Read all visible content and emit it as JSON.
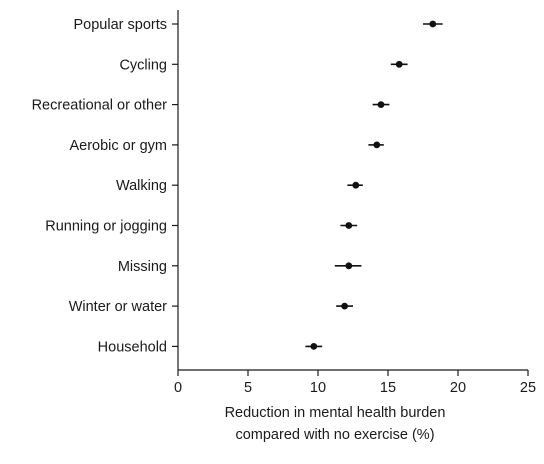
{
  "chart_data": {
    "type": "scatter",
    "subtype": "forest-plot-with-error-bars",
    "orientation": "horizontal",
    "categories": [
      "Popular sports",
      "Cycling",
      "Recreational or other",
      "Aerobic or gym",
      "Walking",
      "Running or jogging",
      "Missing",
      "Winter or water",
      "Household"
    ],
    "points": [
      {
        "category": "Popular sports",
        "value": 18.2,
        "ci_low": 17.5,
        "ci_high": 18.9
      },
      {
        "category": "Cycling",
        "value": 15.8,
        "ci_low": 15.2,
        "ci_high": 16.4
      },
      {
        "category": "Recreational or other",
        "value": 14.5,
        "ci_low": 13.9,
        "ci_high": 15.1
      },
      {
        "category": "Aerobic or gym",
        "value": 14.2,
        "ci_low": 13.6,
        "ci_high": 14.7
      },
      {
        "category": "Walking",
        "value": 12.7,
        "ci_low": 12.1,
        "ci_high": 13.2
      },
      {
        "category": "Running or jogging",
        "value": 12.2,
        "ci_low": 11.6,
        "ci_high": 12.8
      },
      {
        "category": "Missing",
        "value": 12.2,
        "ci_low": 11.2,
        "ci_high": 13.1
      },
      {
        "category": "Winter or water",
        "value": 11.9,
        "ci_low": 11.3,
        "ci_high": 12.5
      },
      {
        "category": "Household",
        "value": 9.7,
        "ci_low": 9.1,
        "ci_high": 10.3
      }
    ],
    "xlim": [
      0,
      25
    ],
    "xticks": [
      0,
      5,
      10,
      15,
      20,
      25
    ],
    "xlabel_lines": [
      "Reduction in mental health burden",
      "compared with no exercise (%)"
    ],
    "ylabel": "",
    "title": "",
    "grid": false,
    "legend": "none",
    "colors": {
      "marker": "#111111",
      "axis": "#1a1a1a",
      "text": "#1a1a1a"
    }
  }
}
